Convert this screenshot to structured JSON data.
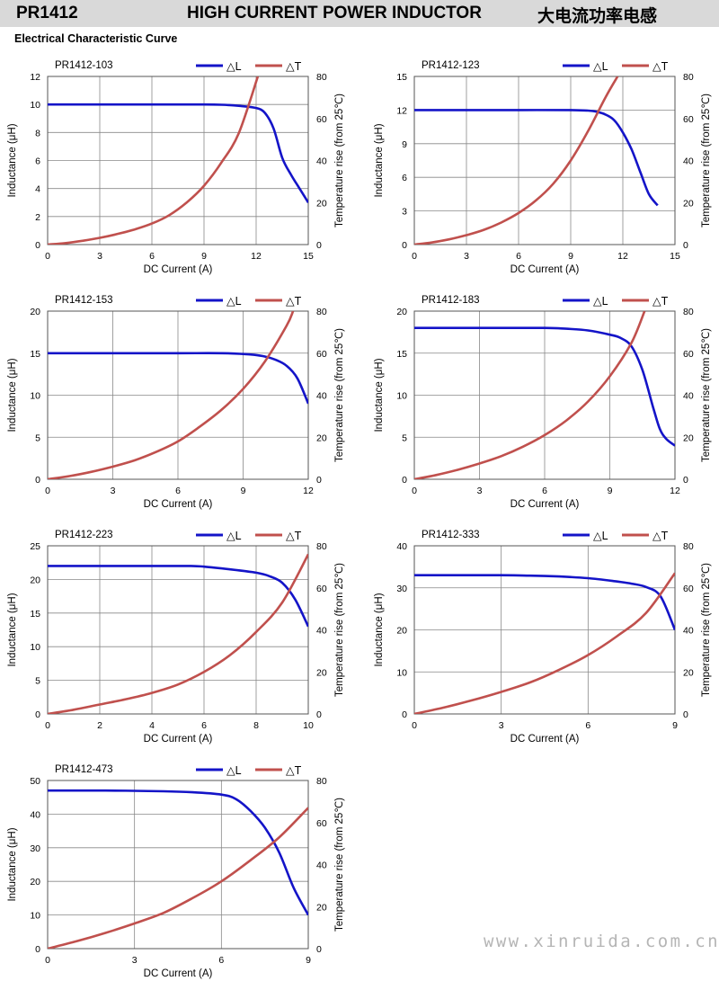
{
  "header": {
    "model": "PR1412",
    "title": "HIGH CURRENT POWER INDUCTOR",
    "title_cn": "大电流功率电感"
  },
  "section_title": "Electrical Characteristic Curve",
  "watermark": "www.xinruida.com.cn",
  "colors": {
    "inductance": "#1414c8",
    "temperature": "#c0504d",
    "grid": "#888888",
    "header_bg": "#d9d9d9"
  },
  "chart_data": [
    {
      "type": "line",
      "title": "PR1412-103",
      "xlabel": "DC Current (A)",
      "ylabel": "Inductance (μH)",
      "y2label": "Temperature rise (from 25℃)",
      "xlim": [
        0,
        15
      ],
      "xticks": [
        0,
        3,
        6,
        9,
        12,
        15
      ],
      "ylim": [
        0,
        12
      ],
      "yticks": [
        0,
        2,
        4,
        6,
        8,
        10,
        12
      ],
      "y2lim": [
        0,
        80
      ],
      "y2ticks": [
        0,
        20,
        40,
        60,
        80
      ],
      "legend": "top-right",
      "grid": true,
      "series": [
        {
          "name": "△L",
          "axis": "left",
          "x": [
            0,
            3,
            6,
            9,
            10,
            11,
            12,
            12.5,
            13,
            13.5,
            14,
            14.5,
            15
          ],
          "y": [
            10,
            10,
            10,
            10,
            9.98,
            9.9,
            9.75,
            9.4,
            8.3,
            6.2,
            5,
            4,
            3
          ]
        },
        {
          "name": "△T",
          "axis": "right",
          "x": [
            0,
            1,
            2,
            3,
            4,
            5,
            6,
            7,
            8,
            9,
            10,
            11,
            12.1
          ],
          "y": [
            0,
            0.7,
            1.8,
            3.2,
            5,
            7.2,
            10,
            14,
            20,
            28,
            39,
            53,
            80
          ]
        }
      ]
    },
    {
      "type": "line",
      "title": "PR1412-123",
      "xlabel": "DC Current (A)",
      "ylabel": "Inductance (μH)",
      "y2label": "Temperature rise (from 25℃)",
      "xlim": [
        0,
        15
      ],
      "xticks": [
        0,
        3,
        6,
        9,
        12,
        15
      ],
      "ylim": [
        0,
        15
      ],
      "yticks": [
        0,
        3,
        6,
        9,
        12,
        15
      ],
      "y2lim": [
        0,
        80
      ],
      "y2ticks": [
        0,
        20,
        40,
        60,
        80
      ],
      "legend": "top-right",
      "grid": true,
      "series": [
        {
          "name": "△L",
          "axis": "left",
          "x": [
            0,
            3,
            6,
            9,
            10,
            10.5,
            11,
            11.5,
            12,
            12.5,
            13,
            13.5,
            14
          ],
          "y": [
            12,
            12,
            12,
            12,
            11.95,
            11.85,
            11.6,
            11.1,
            10,
            8.5,
            6.5,
            4.5,
            3.5
          ]
        },
        {
          "name": "△T",
          "axis": "right",
          "x": [
            0,
            1,
            2,
            3,
            4,
            5,
            6,
            7,
            8,
            9,
            10,
            11,
            11.7
          ],
          "y": [
            0,
            1,
            2.5,
            4.5,
            7,
            10.5,
            15,
            21,
            29,
            40,
            54,
            70,
            80
          ]
        }
      ]
    },
    {
      "type": "line",
      "title": "PR1412-153",
      "xlabel": "DC Current (A)",
      "ylabel": "Inductance (μH)",
      "y2label": "Temperature rise (from 25℃)",
      "xlim": [
        0,
        12
      ],
      "xticks": [
        0,
        3,
        6,
        9,
        12
      ],
      "ylim": [
        0,
        20
      ],
      "yticks": [
        0,
        5,
        10,
        15,
        20
      ],
      "y2lim": [
        0,
        80
      ],
      "y2ticks": [
        0,
        20,
        40,
        60,
        80
      ],
      "legend": "top-right",
      "grid": true,
      "series": [
        {
          "name": "△L",
          "axis": "left",
          "x": [
            0,
            3,
            6,
            8,
            9,
            9.5,
            10,
            10.5,
            11,
            11.5,
            12
          ],
          "y": [
            15,
            15,
            15,
            15,
            14.9,
            14.8,
            14.6,
            14.2,
            13.5,
            12,
            9
          ]
        },
        {
          "name": "△T",
          "axis": "right",
          "x": [
            0,
            1,
            2,
            3,
            4,
            5,
            6,
            7,
            8,
            9,
            10,
            11,
            11.3
          ],
          "y": [
            0,
            1.5,
            3.5,
            6,
            9,
            13,
            18,
            25,
            33,
            43,
            56,
            73,
            80
          ]
        }
      ]
    },
    {
      "type": "line",
      "title": "PR1412-183",
      "xlabel": "DC Current (A)",
      "ylabel": "Inductance (μH)",
      "y2label": "Temperature rise (from 25℃)",
      "xlim": [
        0,
        12
      ],
      "xticks": [
        0,
        3,
        6,
        9,
        12
      ],
      "ylim": [
        0,
        20
      ],
      "yticks": [
        0,
        5,
        10,
        15,
        20
      ],
      "y2lim": [
        0,
        80
      ],
      "y2ticks": [
        0,
        20,
        40,
        60,
        80
      ],
      "legend": "top-right",
      "grid": true,
      "series": [
        {
          "name": "△L",
          "axis": "left",
          "x": [
            0,
            3,
            6,
            7,
            8,
            9,
            9.5,
            10,
            10.5,
            11,
            11.3,
            11.6,
            12
          ],
          "y": [
            18,
            18,
            18,
            17.9,
            17.7,
            17.2,
            16.8,
            15.8,
            13,
            8.5,
            6,
            4.8,
            4
          ]
        },
        {
          "name": "△T",
          "axis": "right",
          "x": [
            0,
            1,
            2,
            3,
            4,
            5,
            6,
            7,
            8,
            9,
            10,
            10.6
          ],
          "y": [
            0,
            2,
            4.5,
            7.5,
            11,
            15.5,
            21,
            28,
            37,
            49,
            65,
            80
          ]
        }
      ]
    },
    {
      "type": "line",
      "title": "PR1412-223",
      "xlabel": "DC Current (A)",
      "ylabel": "Inductance (μH)",
      "y2label": "Temperature rise (from 25℃)",
      "xlim": [
        0,
        10
      ],
      "xticks": [
        0,
        2,
        4,
        6,
        8,
        10
      ],
      "ylim": [
        0,
        25
      ],
      "yticks": [
        0,
        5,
        10,
        15,
        20,
        25
      ],
      "y2lim": [
        0,
        80
      ],
      "y2ticks": [
        0,
        20,
        40,
        60,
        80
      ],
      "legend": "top-right",
      "grid": true,
      "series": [
        {
          "name": "△L",
          "axis": "left",
          "x": [
            0,
            2,
            4,
            5.5,
            6,
            7,
            8,
            8.5,
            9,
            9.5,
            10
          ],
          "y": [
            22,
            22,
            22,
            22,
            21.9,
            21.5,
            21,
            20.5,
            19.5,
            17,
            13
          ]
        },
        {
          "name": "△T",
          "axis": "right",
          "x": [
            0,
            1,
            2,
            3,
            4,
            5,
            6,
            7,
            8,
            9,
            10
          ],
          "y": [
            0,
            2,
            4.5,
            7,
            10,
            14,
            20,
            28,
            39,
            53,
            76
          ]
        }
      ]
    },
    {
      "type": "line",
      "title": "PR1412-333",
      "xlabel": "DC Current (A)",
      "ylabel": "Inductance (μH)",
      "y2label": "Temperature rise (from 25℃)",
      "xlim": [
        0,
        9
      ],
      "xticks": [
        0,
        3,
        6,
        9
      ],
      "ylim": [
        0,
        40
      ],
      "yticks": [
        0,
        10,
        20,
        30,
        40
      ],
      "y2lim": [
        0,
        80
      ],
      "y2ticks": [
        0,
        20,
        40,
        60,
        80
      ],
      "legend": "top-right",
      "grid": true,
      "series": [
        {
          "name": "△L",
          "axis": "left",
          "x": [
            0,
            3,
            4,
            5,
            6,
            7,
            7.5,
            8,
            8.5,
            9
          ],
          "y": [
            33,
            33,
            32.9,
            32.7,
            32.3,
            31.5,
            31,
            30.2,
            28,
            20
          ]
        },
        {
          "name": "△T",
          "axis": "right",
          "x": [
            0,
            1,
            2,
            3,
            4,
            5,
            6,
            7,
            8,
            9
          ],
          "y": [
            0,
            3,
            6.5,
            10.5,
            15,
            21,
            28,
            37,
            48,
            67
          ]
        }
      ]
    },
    {
      "type": "line",
      "title": "PR1412-473",
      "xlabel": "DC Current (A)",
      "ylabel": "Inductance (μH)",
      "y2label": "Temperature rise (from 25℃)",
      "xlim": [
        0,
        9
      ],
      "xticks": [
        0,
        3,
        6,
        9
      ],
      "ylim": [
        0,
        50
      ],
      "yticks": [
        0,
        10,
        20,
        30,
        40,
        50
      ],
      "y2lim": [
        0,
        80
      ],
      "y2ticks": [
        0,
        20,
        40,
        60,
        80
      ],
      "legend": "top-right",
      "grid": true,
      "series": [
        {
          "name": "△L",
          "axis": "left",
          "x": [
            0,
            2,
            4,
            5,
            6,
            6.5,
            7,
            7.5,
            8,
            8.5,
            9
          ],
          "y": [
            47,
            47,
            46.8,
            46.5,
            45.8,
            44.5,
            41,
            36,
            28.5,
            18,
            10
          ]
        },
        {
          "name": "△T",
          "axis": "right",
          "x": [
            0,
            1,
            2,
            3,
            4,
            5,
            6,
            7,
            8,
            9
          ],
          "y": [
            0,
            3.5,
            7.5,
            12,
            17,
            24,
            32,
            42,
            53,
            67
          ]
        }
      ]
    }
  ]
}
